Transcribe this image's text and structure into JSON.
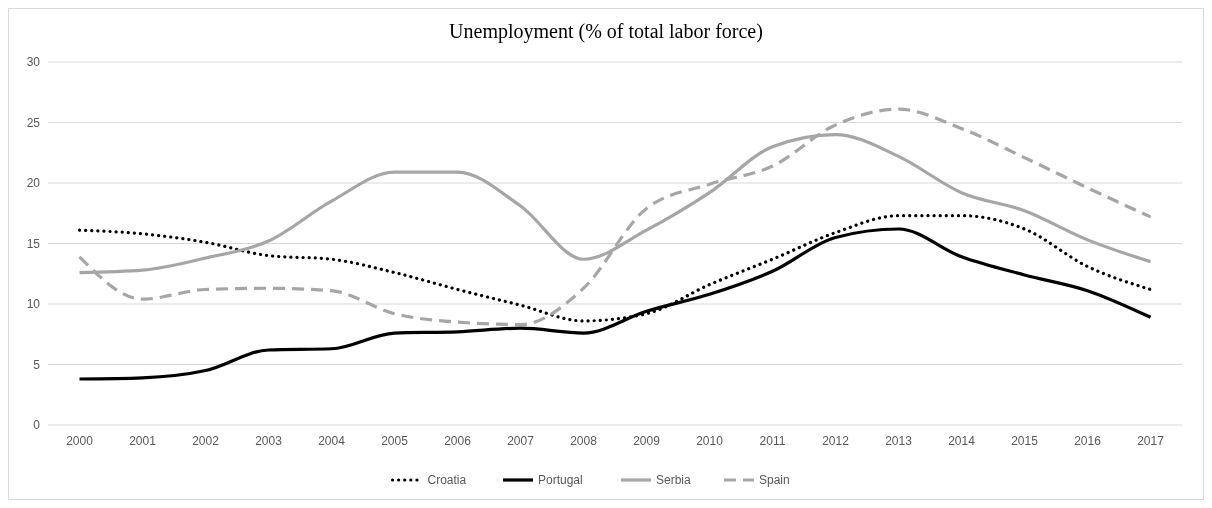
{
  "chart_data": {
    "type": "line",
    "title": "Unemployment (% of total labor force)",
    "categories": [
      "2000",
      "2001",
      "2002",
      "2003",
      "2004",
      "2005",
      "2006",
      "2007",
      "2008",
      "2009",
      "2010",
      "2011",
      "2012",
      "2013",
      "2014",
      "2015",
      "2016",
      "2017"
    ],
    "series": [
      {
        "name": "Croatia",
        "color": "#000000",
        "line_style": "dotted",
        "values": [
          16.1,
          15.8,
          15.1,
          14.0,
          13.7,
          12.6,
          11.2,
          9.9,
          8.6,
          9.2,
          11.6,
          13.7,
          15.9,
          17.3,
          17.3,
          16.2,
          13.1,
          11.2
        ]
      },
      {
        "name": "Portugal",
        "color": "#000000",
        "line_style": "solid",
        "values": [
          3.8,
          3.9,
          4.5,
          6.2,
          6.3,
          7.6,
          7.7,
          8.0,
          7.6,
          9.4,
          10.8,
          12.7,
          15.5,
          16.2,
          13.9,
          12.4,
          11.1,
          8.9
        ]
      },
      {
        "name": "Serbia",
        "color": "#a6a6a6",
        "line_style": "solid",
        "values": [
          12.6,
          12.8,
          13.8,
          15.2,
          18.5,
          20.9,
          20.9,
          18.1,
          13.7,
          16.1,
          19.2,
          23.0,
          24.0,
          22.2,
          19.2,
          17.7,
          15.3,
          13.5
        ]
      },
      {
        "name": "Spain",
        "color": "#a6a6a6",
        "line_style": "dashed",
        "values": [
          13.9,
          10.4,
          11.2,
          11.3,
          11.1,
          9.2,
          8.5,
          8.3,
          11.3,
          17.9,
          19.9,
          21.4,
          24.8,
          26.1,
          24.5,
          22.1,
          19.6,
          17.2
        ]
      }
    ],
    "ylim": [
      0,
      30
    ],
    "yticks": [
      0,
      5,
      10,
      15,
      20,
      25,
      30
    ],
    "grid": "y",
    "legend": "bottom",
    "marker": "none"
  }
}
